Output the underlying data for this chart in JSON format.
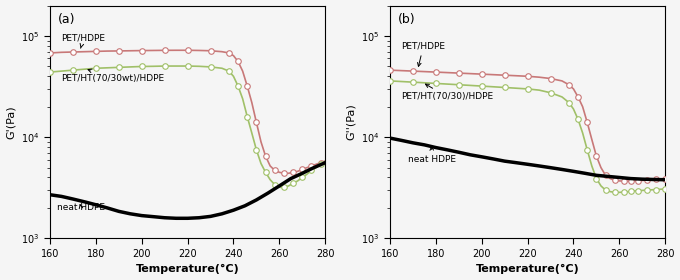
{
  "xlim": [
    160,
    280
  ],
  "ylim": [
    1000,
    200000
  ],
  "xticks": [
    160,
    180,
    200,
    220,
    240,
    260,
    280
  ],
  "xlabel": "Temperature(°C)",
  "panel_a": {
    "label": "(a)",
    "ylabel": "G'(Pa)",
    "curves": {
      "PET_HDPE": {
        "label": "PET/HDPE",
        "color": "#c87878",
        "linewidth": 1.2,
        "x": [
          160,
          165,
          170,
          175,
          180,
          185,
          190,
          195,
          200,
          205,
          210,
          215,
          220,
          225,
          230,
          235,
          238,
          240,
          242,
          244,
          246,
          248,
          250,
          252,
          254,
          256,
          258,
          260,
          262,
          264,
          266,
          268,
          270,
          272,
          274,
          276,
          278,
          280
        ],
        "y": [
          68000,
          69000,
          69500,
          70000,
          70500,
          71000,
          71200,
          71500,
          71800,
          72000,
          72200,
          72300,
          72300,
          72000,
          71500,
          70000,
          68000,
          64000,
          56000,
          45000,
          32000,
          22000,
          14000,
          9000,
          6500,
          5200,
          4700,
          4500,
          4400,
          4400,
          4500,
          4600,
          4800,
          5000,
          5200,
          5400,
          5600,
          5800
        ]
      },
      "PET_HT_HDPE": {
        "label": "PET/HT(70/30wt)/HDPE",
        "color": "#a0c068",
        "linewidth": 1.2,
        "x": [
          160,
          165,
          170,
          175,
          180,
          185,
          190,
          195,
          200,
          205,
          210,
          215,
          220,
          225,
          230,
          235,
          238,
          240,
          242,
          244,
          246,
          248,
          250,
          252,
          254,
          256,
          258,
          260,
          262,
          264,
          266,
          268,
          270,
          272,
          274,
          276,
          278,
          280
        ],
        "y": [
          44000,
          45000,
          46000,
          47000,
          48000,
          48500,
          49000,
          49500,
          50000,
          50200,
          50500,
          50500,
          50500,
          50200,
          49500,
          48000,
          45000,
          40000,
          32000,
          24000,
          16000,
          11000,
          7500,
          5500,
          4500,
          3800,
          3400,
          3200,
          3200,
          3300,
          3500,
          3700,
          4000,
          4300,
          4700,
          5000,
          5400,
          5800
        ]
      },
      "neat_HDPE": {
        "label": "neat HDPE",
        "color": "#000000",
        "linewidth": 2.5,
        "x": [
          160,
          165,
          170,
          175,
          180,
          185,
          190,
          195,
          200,
          205,
          210,
          215,
          220,
          225,
          230,
          235,
          240,
          245,
          250,
          255,
          260,
          265,
          270,
          275,
          280
        ],
        "y": [
          2700,
          2600,
          2450,
          2300,
          2150,
          2000,
          1850,
          1750,
          1680,
          1640,
          1600,
          1580,
          1580,
          1600,
          1650,
          1750,
          1900,
          2100,
          2400,
          2800,
          3300,
          3900,
          4400,
          5000,
          5600
        ]
      }
    },
    "ann_pet_hdpe": {
      "text": "PET/HDPE",
      "xt": 165,
      "yt": 95000,
      "xa": 173,
      "ya": 71000
    },
    "ann_pet_ht_hdpe": {
      "text": "PET/HT(70/30wt)/HDPE",
      "xt": 165,
      "yt": 38000,
      "xa": 175,
      "ya": 48000
    },
    "ann_neat_hdpe": {
      "text": "neat HDPE",
      "xt": 163,
      "yt": 2000,
      "xa": 173,
      "ya": 2200
    }
  },
  "panel_b": {
    "label": "(b)",
    "ylabel": "G''(Pa)",
    "curves": {
      "PET_HDPE": {
        "label": "PET/HDPE",
        "color": "#c87878",
        "linewidth": 1.2,
        "x": [
          160,
          165,
          170,
          175,
          180,
          185,
          190,
          195,
          200,
          205,
          210,
          215,
          220,
          225,
          230,
          235,
          238,
          240,
          242,
          244,
          246,
          248,
          250,
          252,
          254,
          256,
          258,
          260,
          262,
          264,
          265,
          266,
          268,
          270,
          272,
          274,
          276,
          278,
          280
        ],
        "y": [
          46000,
          45500,
          45000,
          44500,
          44000,
          43500,
          43000,
          42500,
          42000,
          41500,
          41000,
          40500,
          40000,
          39200,
          38000,
          36000,
          33000,
          30000,
          25000,
          20000,
          14000,
          9500,
          6500,
          5000,
          4200,
          3900,
          3750,
          3700,
          3680,
          3680,
          3680,
          3700,
          3720,
          3740,
          3760,
          3800,
          3820,
          3840,
          3860
        ]
      },
      "PET_HT_HDPE": {
        "label": "PET/HT(70/30)/HDPE",
        "color": "#a0c068",
        "linewidth": 1.2,
        "x": [
          160,
          165,
          170,
          175,
          180,
          185,
          190,
          195,
          200,
          205,
          210,
          215,
          220,
          225,
          230,
          235,
          238,
          240,
          242,
          244,
          246,
          248,
          250,
          252,
          254,
          256,
          258,
          260,
          262,
          264,
          265,
          266,
          268,
          270,
          272,
          274,
          276,
          278,
          280
        ],
        "y": [
          36000,
          35500,
          35000,
          34500,
          34000,
          33500,
          33000,
          32500,
          32000,
          31500,
          31000,
          30500,
          30000,
          29200,
          27500,
          25000,
          22000,
          19000,
          15000,
          11000,
          7500,
          5200,
          3900,
          3300,
          3000,
          2900,
          2850,
          2850,
          2870,
          2900,
          2920,
          2940,
          2960,
          2980,
          3000,
          3020,
          3040,
          3060,
          3080
        ]
      },
      "neat_HDPE": {
        "label": "neat HDPE",
        "color": "#000000",
        "linewidth": 2.5,
        "x": [
          160,
          165,
          170,
          175,
          180,
          185,
          190,
          195,
          200,
          205,
          210,
          215,
          220,
          225,
          230,
          235,
          240,
          245,
          250,
          255,
          260,
          265,
          270,
          275,
          280
        ],
        "y": [
          9800,
          9300,
          8800,
          8400,
          7900,
          7500,
          7100,
          6700,
          6400,
          6100,
          5800,
          5600,
          5400,
          5200,
          5000,
          4800,
          4600,
          4400,
          4200,
          4100,
          4000,
          3900,
          3850,
          3820,
          3800
        ]
      }
    },
    "ann_pet_hdpe": {
      "text": "PET/HDPE",
      "xt": 165,
      "yt": 80000,
      "xa": 172,
      "ya": 46000
    },
    "ann_pet_ht_hdpe": {
      "text": "PET/HT(70/30)/HDPE",
      "xt": 165,
      "yt": 25000,
      "xa": 174,
      "ya": 35000
    },
    "ann_neat_hdpe": {
      "text": "neat HDPE",
      "xt": 168,
      "yt": 6000,
      "xa": 178,
      "ya": 8800
    }
  },
  "background_color": "#f5f5f5",
  "tick_fontsize": 7,
  "label_fontsize": 8,
  "annotation_fontsize": 6.5,
  "marker_every": 2,
  "markersize": 4.0
}
